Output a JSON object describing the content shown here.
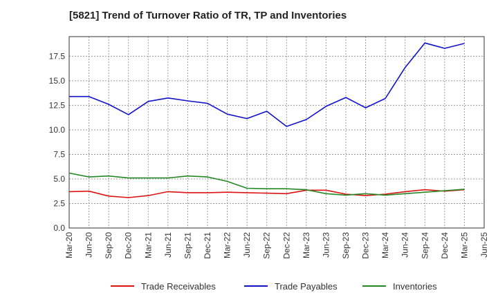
{
  "chart_data": {
    "type": "line",
    "title": "[5821]  Trend of Turnover Ratio of TR, TP and Inventories",
    "xlabel": "",
    "ylabel": "",
    "ylim": [
      0,
      19.5
    ],
    "grid": true,
    "legend_position": "bottom",
    "y_ticks": [
      "0.0",
      "2.5",
      "5.0",
      "7.5",
      "10.0",
      "12.5",
      "15.0",
      "17.5"
    ],
    "x_tick_labels": [
      "Mar-20",
      "Jun-20",
      "Sep-20",
      "Dec-20",
      "Mar-21",
      "Jun-21",
      "Sep-21",
      "Dec-21",
      "Mar-22",
      "Jun-22",
      "Sep-22",
      "Dec-22",
      "Mar-23",
      "Jun-23",
      "Sep-23",
      "Dec-23",
      "Mar-24",
      "Jun-24",
      "Sep-24",
      "Dec-24",
      "Mar-25",
      "Jun-25"
    ],
    "categories": [
      "Mar-20",
      "Jun-20",
      "Sep-20",
      "Dec-20",
      "Mar-21",
      "Jun-21",
      "Sep-21",
      "Dec-21",
      "Mar-22",
      "Jun-22",
      "Sep-22",
      "Dec-22",
      "Mar-23",
      "Jun-23",
      "Sep-23",
      "Dec-23",
      "Mar-24",
      "Jun-24",
      "Sep-24",
      "Dec-24",
      "Mar-25"
    ],
    "series": [
      {
        "name": "Trade Receivables",
        "color": "#dd1111",
        "values": [
          3.7,
          3.75,
          3.25,
          3.1,
          3.3,
          3.7,
          3.6,
          3.6,
          3.65,
          3.6,
          3.55,
          3.5,
          3.85,
          3.85,
          3.45,
          3.3,
          3.45,
          3.7,
          3.9,
          3.75,
          3.9
        ]
      },
      {
        "name": "Trade Payables",
        "color": "#1111cc",
        "values": [
          13.4,
          13.4,
          12.6,
          11.55,
          12.9,
          13.25,
          12.95,
          12.7,
          11.6,
          11.15,
          11.9,
          10.35,
          11.05,
          12.4,
          13.3,
          12.25,
          13.2,
          16.35,
          18.85,
          18.3,
          18.8
        ]
      },
      {
        "name": "Inventories",
        "color": "#228822",
        "values": [
          5.6,
          5.2,
          5.3,
          5.1,
          5.1,
          5.1,
          5.3,
          5.2,
          4.75,
          4.05,
          4.0,
          4.0,
          3.9,
          3.5,
          3.35,
          3.5,
          3.35,
          3.5,
          3.65,
          3.8,
          3.95
        ]
      }
    ]
  }
}
